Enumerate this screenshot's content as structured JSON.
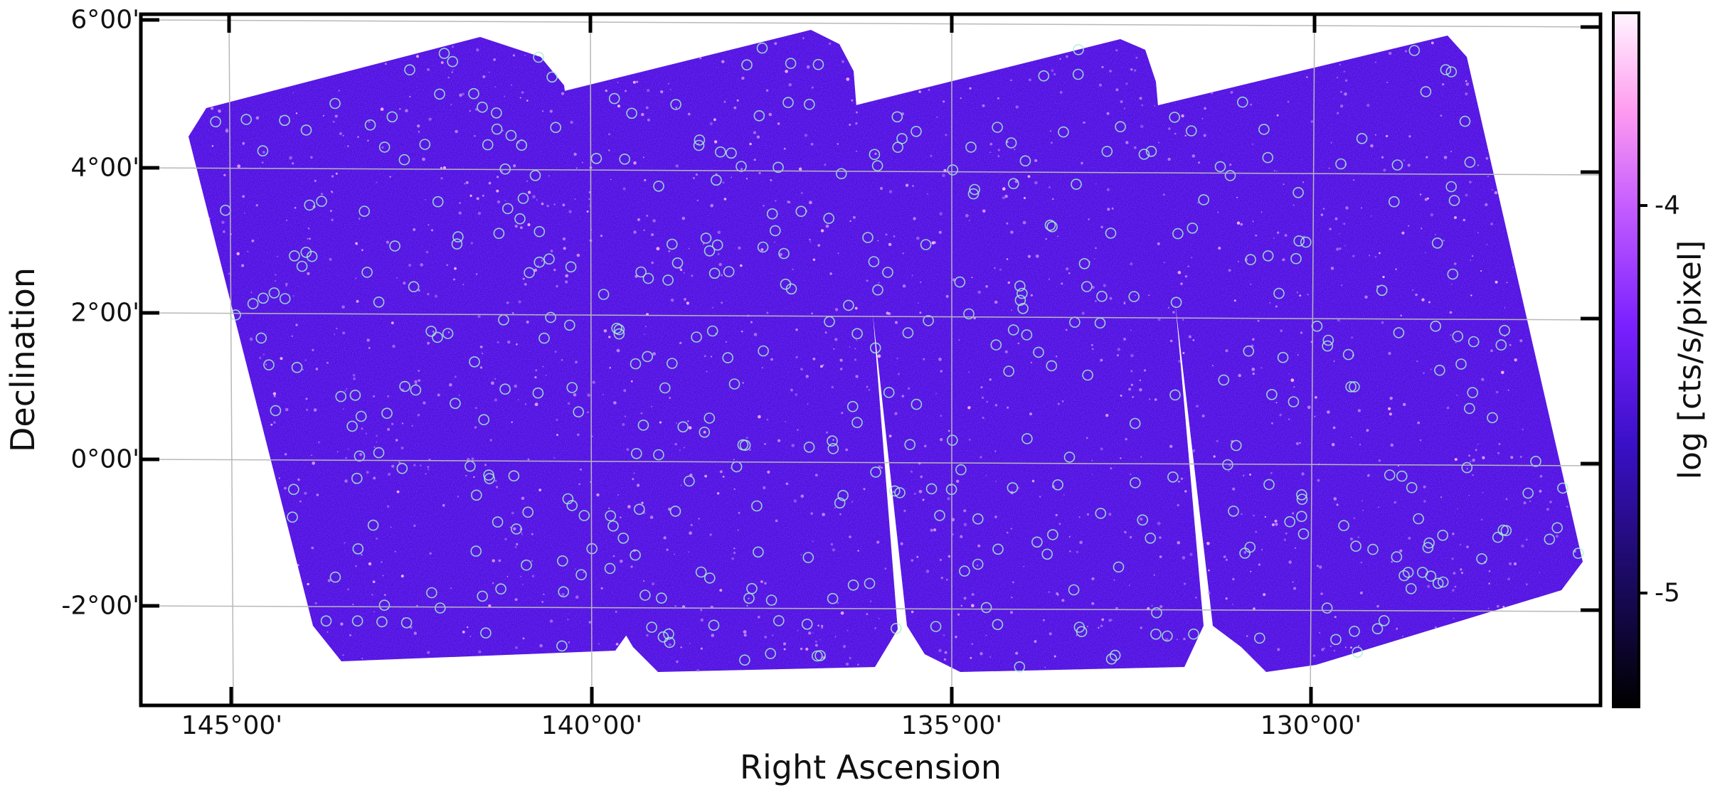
{
  "figure": {
    "xlabel": "Right Ascension",
    "ylabel": "Declination",
    "ra_ticks": [
      "145°00'",
      "140°00'",
      "135°00'",
      "130°00'"
    ],
    "dec_ticks": [
      "6°00'",
      "4°00'",
      "2°00'",
      "0°00'",
      "-2°00'"
    ],
    "colorbar": {
      "label": "log [cts/s/pixel]",
      "ticks": [
        "-4",
        "-5"
      ],
      "colors": [
        "#000000",
        "#1a0a5e",
        "#3a10c8",
        "#7a20ff",
        "#c45cff",
        "#ff9cf0",
        "#fff5ff"
      ]
    },
    "colors": {
      "background_map": "#4a12e0",
      "frame": "#000000",
      "grid": "#b8b8b8",
      "source_circles": "#a8f0d0"
    }
  },
  "chart_data": {
    "type": "heatmap",
    "title": "",
    "xlabel": "Right Ascension",
    "ylabel": "Declination",
    "xlim_deg": [
      146.3,
      125.8
    ],
    "ylim_deg": [
      -3.3,
      6.1
    ],
    "x_ticks_deg": [
      145,
      140,
      135,
      130
    ],
    "y_ticks_deg": [
      6,
      4,
      2,
      0,
      -2
    ],
    "colorbar_range": [
      -5.3,
      -3.6
    ],
    "colorbar_ticks": [
      -4,
      -5
    ],
    "fields": [
      {
        "ra_deg": [
          144.7,
          139.7
        ],
        "dec_deg": [
          -2.6,
          5.8
        ]
      },
      {
        "ra_deg": [
          140.4,
          135.4
        ],
        "dec_deg": [
          -2.7,
          5.5
        ]
      },
      {
        "ra_deg": [
          136.1,
          131.1
        ],
        "dec_deg": [
          -2.8,
          5.3
        ]
      },
      {
        "ra_deg": [
          131.8,
          126.8
        ],
        "dec_deg": [
          -2.9,
          5.6
        ]
      }
    ]
  }
}
